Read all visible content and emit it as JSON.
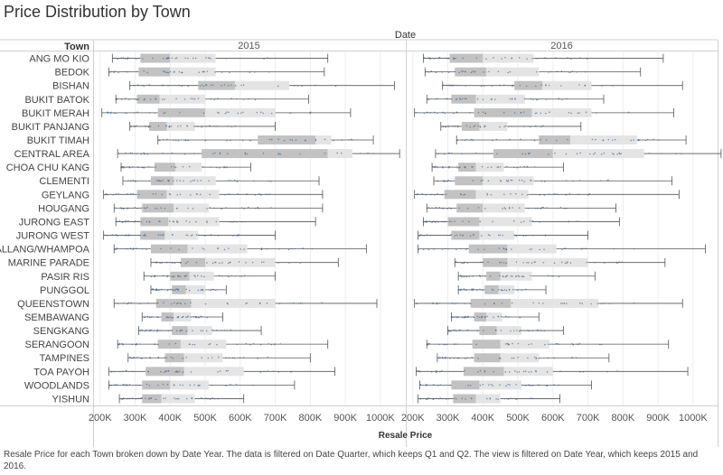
{
  "title": "Price Distribution by Town",
  "caption": "Resale Price for each Town broken down by Date Year.  The data is filtered on Date Quarter, which keeps Q1 and Q2. The view is filtered on Date Year, which keeps 2015 and 2016.",
  "chart_data": {
    "type": "boxplot",
    "column_header": "Date",
    "row_header": "Town",
    "xlabel": "Resale Price",
    "x_ticks": [
      "200K",
      "300K",
      "400K",
      "500K",
      "600K",
      "700K",
      "800K",
      "900K",
      "1000K"
    ],
    "x_tick_values": [
      200,
      300,
      400,
      500,
      600,
      700,
      800,
      900,
      1000
    ],
    "xlim": [
      180,
      1070
    ],
    "grid": true,
    "panels": [
      "2015",
      "2016"
    ],
    "colors": {
      "box_lower": "#c2c2c2",
      "box_upper": "#e4e4e4",
      "dots": "#4e6a8a",
      "whisker": "#555555"
    },
    "towns": [
      {
        "name": "ANG MO KIO",
        "y2015": [
          235,
          315,
          400,
          530,
          850
        ],
        "y2016": [
          230,
          305,
          400,
          545,
          915
        ]
      },
      {
        "name": "BEDOK",
        "y2015": [
          225,
          310,
          400,
          530,
          840
        ],
        "y2016": [
          235,
          320,
          410,
          560,
          850
        ]
      },
      {
        "name": "BISHAN",
        "y2015": [
          285,
          480,
          585,
          740,
          1040
        ],
        "y2016": [
          285,
          490,
          570,
          710,
          970
        ]
      },
      {
        "name": "BUKIT BATOK",
        "y2015": [
          245,
          305,
          370,
          500,
          795
        ],
        "y2016": [
          240,
          310,
          380,
          520,
          745
        ]
      },
      {
        "name": "BUKIT MERAH",
        "y2015": [
          205,
          365,
          500,
          700,
          915
        ],
        "y2016": [
          205,
          375,
          540,
          710,
          945
        ]
      },
      {
        "name": "BUKIT PANJANG",
        "y2015": [
          285,
          340,
          390,
          470,
          700
        ],
        "y2016": [
          280,
          340,
          390,
          470,
          680
        ]
      },
      {
        "name": "BUKIT TIMAH",
        "y2015": [
          365,
          650,
          815,
          860,
          980
        ],
        "y2016": [
          325,
          560,
          650,
          840,
          980
        ]
      },
      {
        "name": "CENTRAL AREA",
        "y2015": [
          250,
          490,
          850,
          920,
          1055
        ],
        "y2016": [
          265,
          430,
          600,
          860,
          1080
        ]
      },
      {
        "name": "CHOA CHU KANG",
        "y2015": [
          260,
          355,
          415,
          490,
          630
        ],
        "y2016": [
          255,
          330,
          380,
          460,
          630
        ]
      },
      {
        "name": "CLEMENTI",
        "y2015": [
          265,
          345,
          410,
          530,
          825
        ],
        "y2016": [
          260,
          320,
          400,
          545,
          940
        ]
      },
      {
        "name": "GEYLANG",
        "y2015": [
          210,
          305,
          390,
          540,
          835
        ],
        "y2016": [
          205,
          290,
          380,
          530,
          960
        ]
      },
      {
        "name": "HOUGANG",
        "y2015": [
          240,
          320,
          410,
          510,
          835
        ],
        "y2016": [
          240,
          325,
          400,
          520,
          780
        ]
      },
      {
        "name": "JURONG EAST",
        "y2015": [
          245,
          315,
          395,
          540,
          815
        ],
        "y2016": [
          230,
          300,
          390,
          540,
          790
        ]
      },
      {
        "name": "JURONG WEST",
        "y2015": [
          210,
          315,
          385,
          480,
          700
        ],
        "y2016": [
          215,
          310,
          390,
          490,
          700
        ]
      },
      {
        "name": "KALLANG/WHAMPOA",
        "y2015": [
          240,
          345,
          450,
          620,
          960
        ],
        "y2016": [
          215,
          360,
          470,
          610,
          1035
        ]
      },
      {
        "name": "MARINE PARADE",
        "y2015": [
          345,
          430,
          500,
          700,
          880
        ],
        "y2016": [
          320,
          400,
          470,
          700,
          920
        ]
      },
      {
        "name": "PASIR RIS",
        "y2015": [
          325,
          400,
          455,
          525,
          700
        ],
        "y2016": [
          330,
          410,
          450,
          540,
          720
        ]
      },
      {
        "name": "PUNGGOL",
        "y2015": [
          345,
          405,
          445,
          500,
          560
        ],
        "y2016": [
          330,
          405,
          445,
          490,
          580
        ]
      },
      {
        "name": "QUEENSTOWN",
        "y2015": [
          240,
          360,
          460,
          700,
          990
        ],
        "y2016": [
          205,
          365,
          480,
          730,
          970
        ]
      },
      {
        "name": "SEMBAWANG",
        "y2015": [
          320,
          375,
          410,
          460,
          550
        ],
        "y2016": [
          310,
          375,
          410,
          455,
          560
        ]
      },
      {
        "name": "SENGKANG",
        "y2015": [
          310,
          405,
          450,
          520,
          660
        ],
        "y2016": [
          300,
          390,
          440,
          510,
          630
        ]
      },
      {
        "name": "SERANGOON",
        "y2015": [
          250,
          365,
          430,
          560,
          850
        ],
        "y2016": [
          240,
          370,
          450,
          590,
          930
        ]
      },
      {
        "name": "TAMPINES",
        "y2015": [
          280,
          385,
          440,
          550,
          800
        ],
        "y2016": [
          270,
          375,
          450,
          560,
          760
        ]
      },
      {
        "name": "TOA PAYOH",
        "y2015": [
          225,
          330,
          440,
          610,
          870
        ],
        "y2016": [
          210,
          345,
          460,
          600,
          985
        ]
      },
      {
        "name": "WOODLANDS",
        "y2015": [
          225,
          320,
          400,
          510,
          755
        ],
        "y2016": [
          220,
          310,
          390,
          510,
          710
        ]
      },
      {
        "name": "YISHUN",
        "y2015": [
          255,
          320,
          375,
          470,
          610
        ],
        "y2016": [
          215,
          315,
          380,
          450,
          620
        ]
      }
    ]
  }
}
